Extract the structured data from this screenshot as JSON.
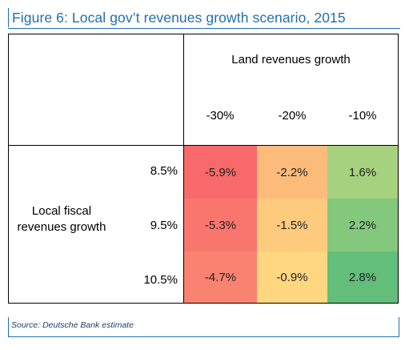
{
  "figure": {
    "title": "Figure 6: Local gov’t revenues growth scenario, 2015",
    "source": "Source: Deutsche Bank estimate"
  },
  "colors": {
    "title_blue": "#1f6fb3",
    "heat_low": "#f8696b",
    "heat_mid": "#ffeb84",
    "heat_high": "#63be7b"
  },
  "chart_data": {
    "type": "heatmap",
    "title": "Local gov’t revenues growth scenario, 2015",
    "column_header": "Land revenues growth",
    "row_header": "Local fiscal revenues growth",
    "columns": [
      "-30%",
      "-20%",
      "-10%"
    ],
    "rows": [
      "8.5%",
      "9.5%",
      "10.5%"
    ],
    "values": [
      [
        -5.9,
        -2.2,
        1.6
      ],
      [
        -5.3,
        -1.5,
        2.2
      ],
      [
        -4.7,
        -0.9,
        2.8
      ]
    ],
    "labels": [
      [
        "-5.9%",
        "-2.2%",
        "1.6%"
      ],
      [
        "-5.3%",
        "-1.5%",
        "2.2%"
      ],
      [
        "-4.7%",
        "-0.9%",
        "2.8%"
      ]
    ]
  }
}
